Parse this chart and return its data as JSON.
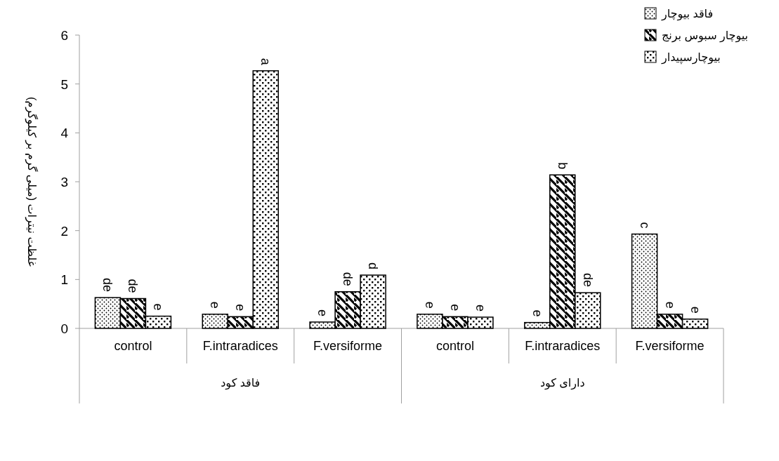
{
  "chart_data": {
    "type": "bar",
    "ylabel": "غلظت نیترات (میلی گرم بر کیلوگرم)",
    "categories": [
      "control",
      "F.intraradices",
      "F.versiforme",
      "control",
      "F.intraradices",
      "F.versiforme"
    ],
    "annotations": [
      "فاقد کود",
      "دارای کود"
    ],
    "series": [
      {
        "name": "فاقد بیوچار",
        "color": "#000000",
        "values": [
          0.63,
          0.29,
          0.13,
          0.29,
          0.12,
          1.93
        ],
        "value_labels": [
          "de",
          "e",
          "e",
          "e",
          "e",
          "c"
        ]
      },
      {
        "name": "بیوچار سبوس برنج",
        "color": "#000000",
        "values": [
          0.61,
          0.24,
          0.75,
          0.24,
          3.14,
          0.29
        ],
        "value_labels": [
          "de",
          "e",
          "de",
          "e",
          "b",
          "e"
        ]
      },
      {
        "name": "بیوچارسپیدار",
        "color": "#000000",
        "values": [
          0.25,
          5.27,
          1.09,
          0.23,
          0.73,
          0.19
        ],
        "value_labels": [
          "e",
          "a",
          "d",
          "e",
          "de",
          "e"
        ]
      }
    ],
    "ylim": [
      0,
      6
    ],
    "yticks": [
      0,
      1,
      2,
      3,
      4,
      5,
      6
    ],
    "legend": "top right"
  }
}
